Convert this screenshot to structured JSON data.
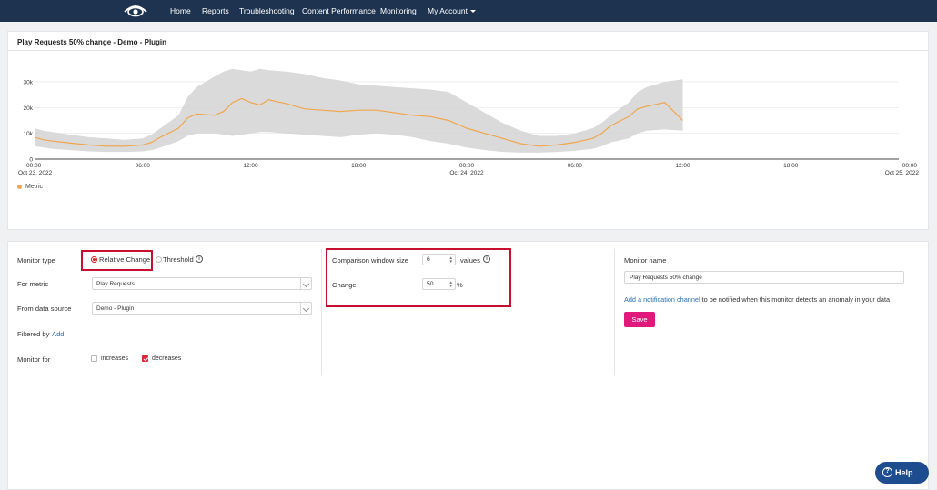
{
  "nav": {
    "logo_icon": "eye-logo-icon",
    "items": [
      "Home",
      "Reports",
      "Troubleshooting",
      "Content Performance",
      "Monitoring",
      "My Account"
    ]
  },
  "chart": {
    "title": "Play Requests 50% change - Demo - Plugin",
    "legend": "Metric"
  },
  "chart_data": {
    "type": "line",
    "title": "Play Requests 50% change - Demo - Plugin",
    "xlabel": "",
    "ylabel": "",
    "y_ticks": [
      "0",
      "10k",
      "20k",
      "30k"
    ],
    "ylim": [
      0,
      30000
    ],
    "x_ticks": [
      {
        "time": "00:00",
        "date": "Oct 23, 2022"
      },
      {
        "time": "06:00",
        "date": ""
      },
      {
        "time": "12:00",
        "date": ""
      },
      {
        "time": "18:00",
        "date": ""
      },
      {
        "time": "00:00",
        "date": "Oct 24, 2022"
      },
      {
        "time": "06:00",
        "date": ""
      },
      {
        "time": "12:00",
        "date": ""
      },
      {
        "time": "18:00",
        "date": ""
      },
      {
        "time": "00:00",
        "date": "Oct 25, 2022"
      }
    ],
    "xlim_hours": [
      0,
      48
    ],
    "grid": true,
    "legend_position": "bottom-left",
    "series": [
      {
        "name": "Metric",
        "color": "#f0a64c",
        "x_hours": [
          0,
          0.5,
          1,
          2,
          3,
          4,
          5,
          6,
          6.5,
          7,
          8,
          8.5,
          9,
          10,
          10.5,
          11,
          11.5,
          12,
          12.5,
          13,
          14,
          15,
          16,
          17,
          18,
          19,
          20,
          21,
          22,
          23,
          24,
          25,
          26,
          27,
          28,
          29,
          30,
          31,
          31.5,
          32,
          33,
          33.5,
          34,
          35,
          36
        ],
        "values": [
          8500,
          7500,
          7000,
          6200,
          5500,
          5000,
          5000,
          5500,
          6500,
          8500,
          12000,
          16000,
          17500,
          17000,
          18500,
          22000,
          23500,
          22000,
          21000,
          23000,
          21500,
          19500,
          19000,
          18500,
          19000,
          19000,
          18000,
          17000,
          16500,
          15000,
          12000,
          10000,
          8000,
          6000,
          5000,
          5500,
          6500,
          8000,
          10000,
          13000,
          16500,
          19500,
          20500,
          22000,
          15000
        ]
      },
      {
        "name": "Band upper",
        "color": "#d3d3d3",
        "values": [
          12000,
          11000,
          10500,
          9500,
          8500,
          8000,
          7500,
          8000,
          9500,
          12000,
          17000,
          24000,
          28000,
          32000,
          34000,
          35000,
          34500,
          34000,
          35000,
          34500,
          34000,
          33000,
          31500,
          30500,
          29000,
          28500,
          28000,
          27500,
          27000,
          26000,
          22000,
          18000,
          14000,
          11000,
          9000,
          9000,
          10000,
          12000,
          14000,
          17000,
          22000,
          26000,
          28000,
          30000,
          31000
        ]
      },
      {
        "name": "Band lower",
        "color": "#d3d3d3",
        "values": [
          5000,
          4500,
          4000,
          3500,
          3000,
          2800,
          2800,
          3000,
          3500,
          4500,
          7000,
          9000,
          10000,
          10000,
          9500,
          9000,
          9500,
          10000,
          10500,
          10500,
          10000,
          9500,
          9000,
          8500,
          9500,
          10000,
          9500,
          8500,
          7000,
          6000,
          4500,
          3500,
          2800,
          2500,
          2500,
          2800,
          3200,
          4000,
          5000,
          6500,
          8000,
          10000,
          11000,
          11500,
          11000
        ]
      }
    ]
  },
  "form": {
    "monitor_type_label": "Monitor type",
    "relative_change": "Relative Change",
    "threshold": "Threshold",
    "for_metric_label": "For metric",
    "for_metric_value": "Play Requests",
    "from_source_label": "From data source",
    "from_source_value": "Demo - Plugin",
    "filtered_by_label": "Filtered by",
    "filtered_by_link": "Add",
    "monitor_for_label": "Monitor for",
    "increases": "increases",
    "decreases": "decreases",
    "comparison_label": "Comparison window size",
    "comparison_value": "6",
    "values_label": "values",
    "change_label": "Change",
    "change_value": "50",
    "percent": "%",
    "monitor_name_label": "Monitor name",
    "monitor_name_value": "Play Requests 50% change",
    "notify_link": "Add a notification channel",
    "notify_text": " to be notified when this monitor detects an anomaly in your data",
    "save": "Save"
  },
  "help": {
    "label": "Help"
  }
}
